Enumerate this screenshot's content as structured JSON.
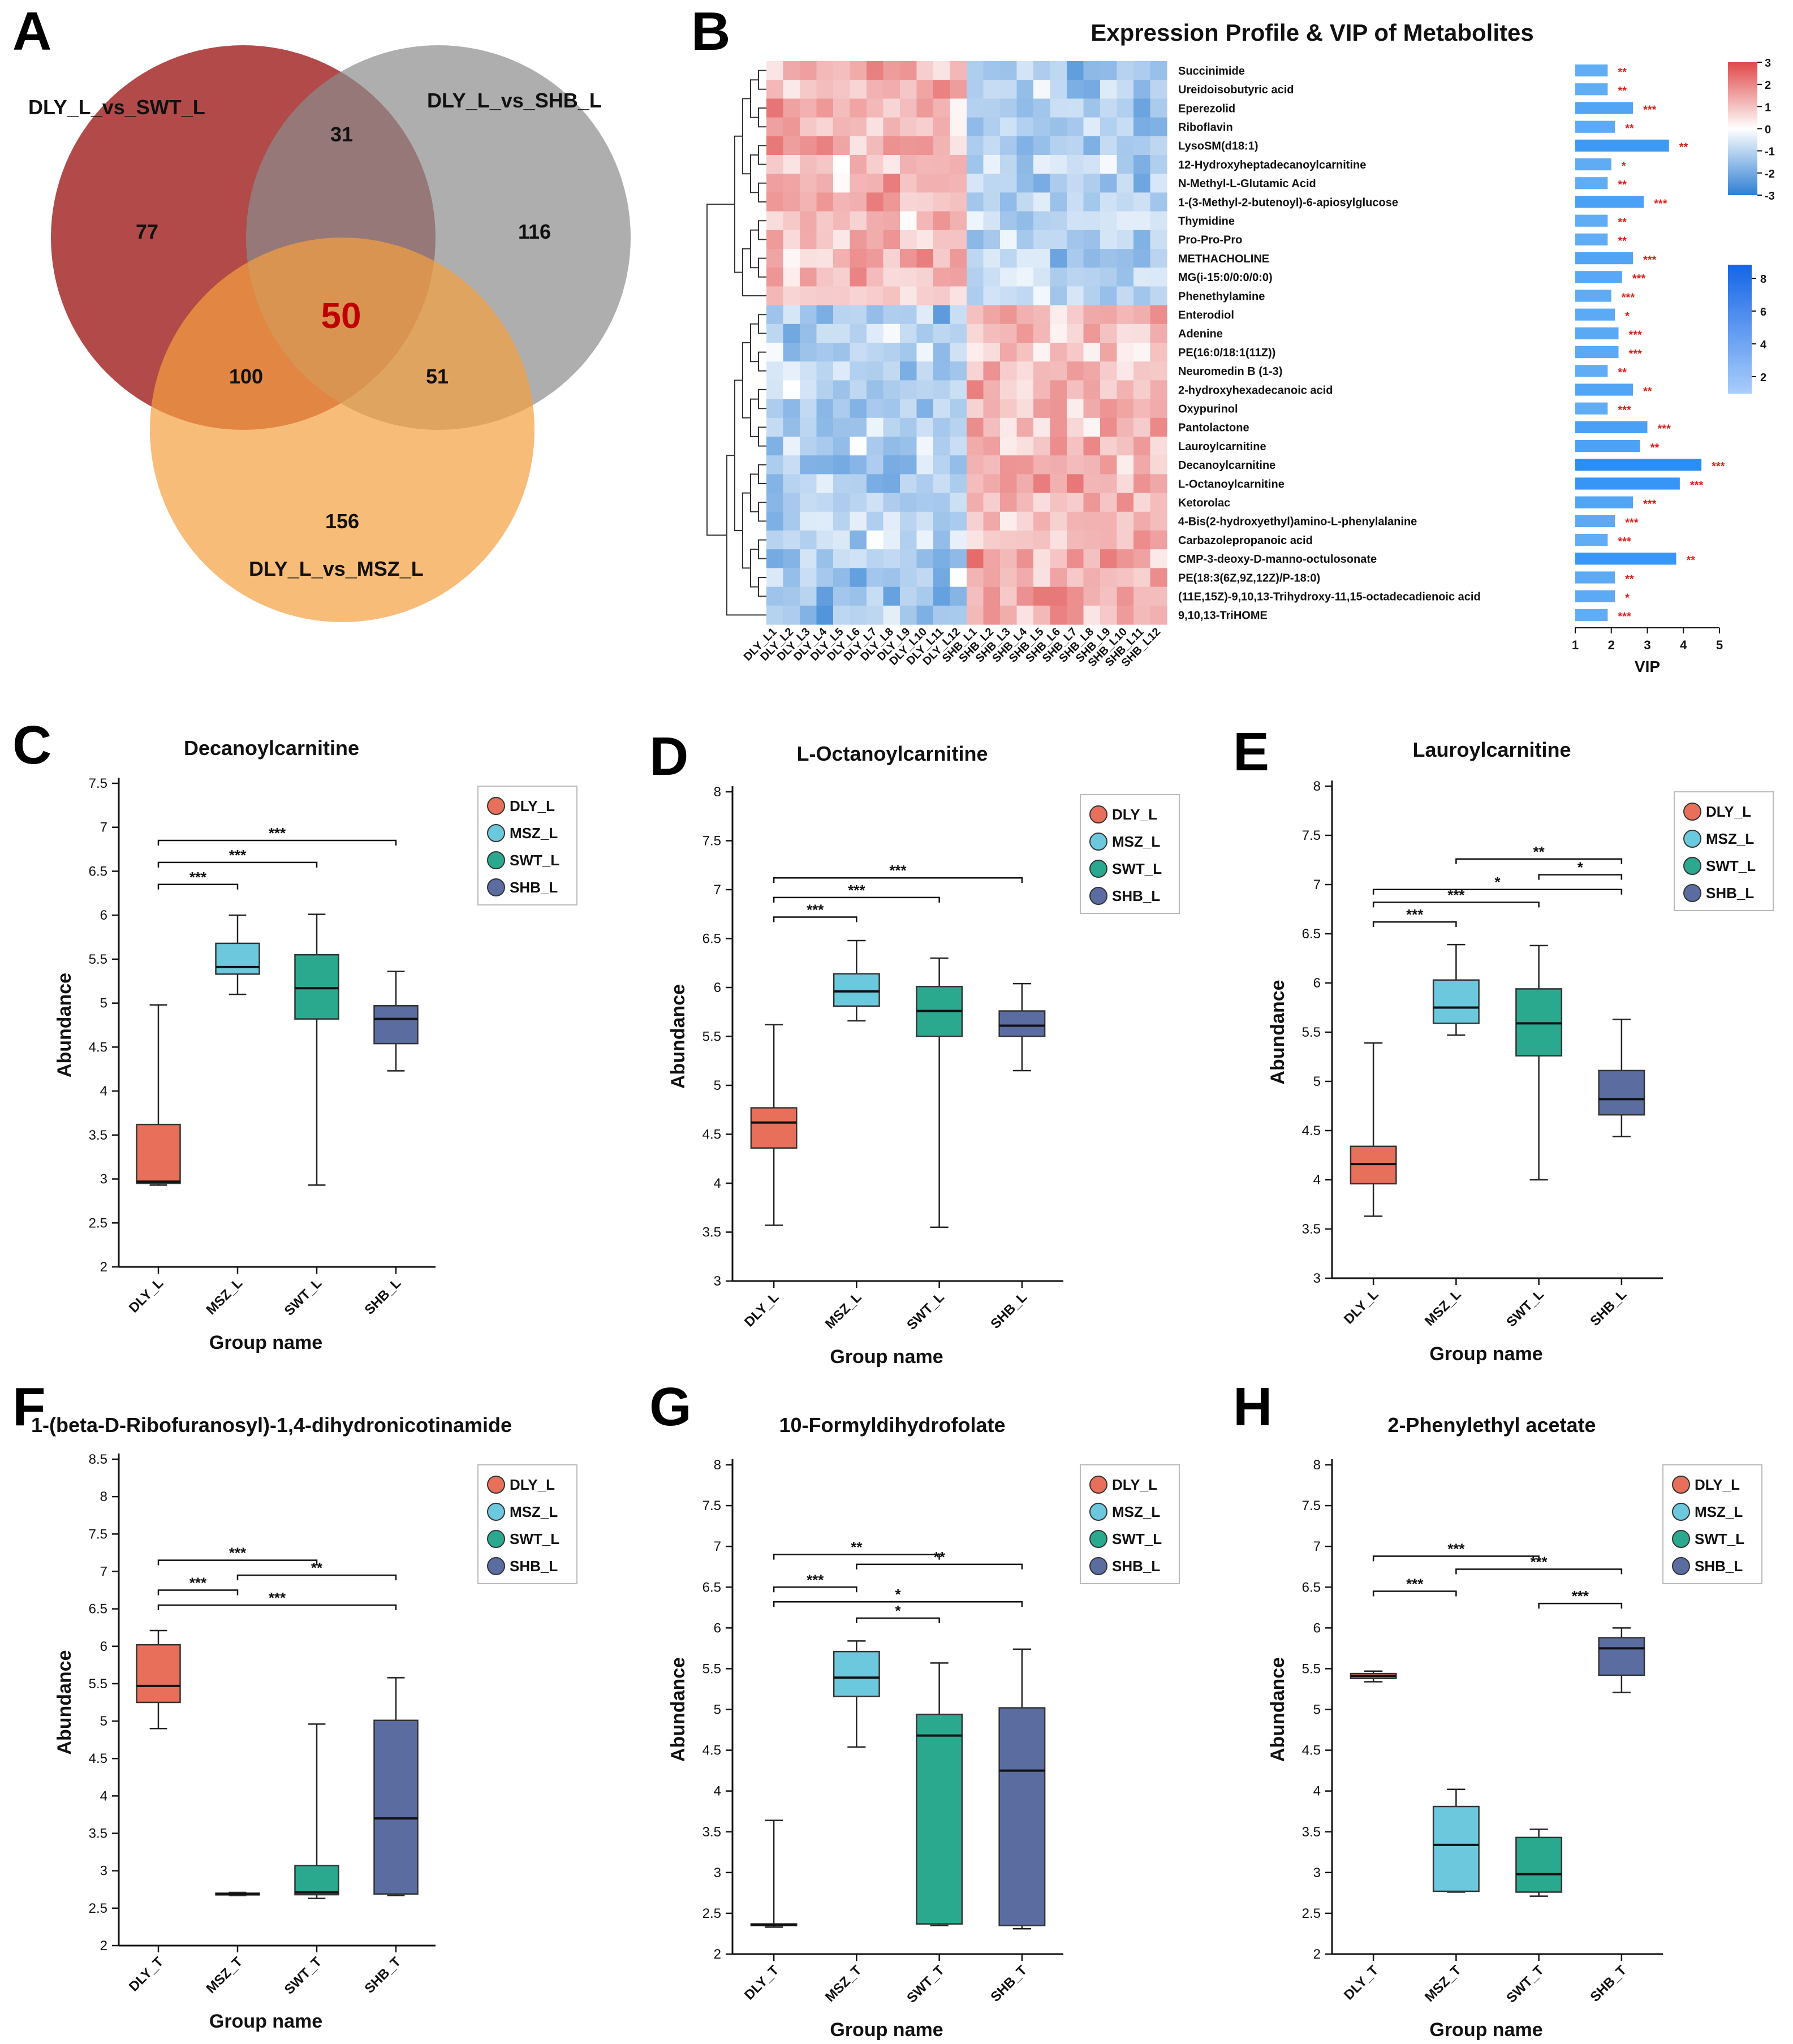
{
  "figure": {
    "panel_letters": [
      "A",
      "B",
      "C",
      "D",
      "E",
      "F",
      "G",
      "H"
    ]
  },
  "colors": {
    "dly": "#e8705b",
    "msz": "#6cc8dc",
    "swt": "#2aa98f",
    "shb": "#5a6ca0",
    "venn_swt": "#a52a2a",
    "venn_shb": "#8c8c8c",
    "venn_msz": "#f5a040",
    "heat_high": "#e04848",
    "heat_low": "#2f7fd3",
    "vip_bar": "#3c8ef0",
    "star": "#e0201a"
  },
  "venn": {
    "sets": [
      "DLY_L_vs_SWT_L",
      "DLY_L_vs_SHB_L",
      "DLY_L_vs_MSZ_L"
    ],
    "only_swt": "77",
    "swt_shb": "31",
    "only_shb": "116",
    "all_three": "50",
    "swt_msz": "100",
    "shb_msz": "51",
    "only_msz": "156"
  },
  "chart_data": [
    {
      "panel": "B",
      "type": "heatmap",
      "title": "Expression Profile & VIP of Metabolites",
      "columns": [
        "DLY_L1",
        "DLY_L2",
        "DLY_L3",
        "DLY_L4",
        "DLY_L5",
        "DLY_L6",
        "DLY_L7",
        "DLY_L8",
        "DLY_L9",
        "DLY_L10",
        "DLY_L11",
        "DLY_L12",
        "SHB_L1",
        "SHB_L2",
        "SHB_L3",
        "SHB_L4",
        "SHB_L5",
        "SHB_L6",
        "SHB_L7",
        "SHB_L8",
        "SHB_L9",
        "SHB_L10",
        "SHB_L11",
        "SHB_L12"
      ],
      "rows": [
        {
          "name": "Succinimide",
          "vip": 1.9,
          "sig": "**",
          "pattern": "up",
          "strength": 1.3
        },
        {
          "name": "Ureidoisobutyric acid",
          "vip": 1.9,
          "sig": "**",
          "pattern": "up",
          "strength": 1.2
        },
        {
          "name": "Eperezolid",
          "vip": 2.6,
          "sig": "***",
          "pattern": "up",
          "strength": 1.4
        },
        {
          "name": "Riboflavin",
          "vip": 2.1,
          "sig": "**",
          "pattern": "up",
          "strength": 1.1
        },
        {
          "name": "LysoSM(d18:1)",
          "vip": 3.6,
          "sig": "**",
          "pattern": "up",
          "strength": 1.5
        },
        {
          "name": "12-Hydroxyheptadecanoylcarnitine",
          "vip": 2.0,
          "sig": "*",
          "pattern": "up",
          "strength": 1.0
        },
        {
          "name": "N-Methyl-L-Glutamic Acid",
          "vip": 1.9,
          "sig": "**",
          "pattern": "up",
          "strength": 1.2
        },
        {
          "name": "1-(3-Methyl-2-butenoyl)-6-apiosylglucose",
          "vip": 2.9,
          "sig": "***",
          "pattern": "up",
          "strength": 1.3
        },
        {
          "name": "Thymidine",
          "vip": 1.9,
          "sig": "**",
          "pattern": "up",
          "strength": 1.2
        },
        {
          "name": "Pro-Pro-Pro",
          "vip": 1.9,
          "sig": "**",
          "pattern": "up",
          "strength": 1.1
        },
        {
          "name": "METHACHOLINE",
          "vip": 2.6,
          "sig": "***",
          "pattern": "up",
          "strength": 1.3
        },
        {
          "name": "MG(i-15:0/0:0/0:0)",
          "vip": 2.3,
          "sig": "***",
          "pattern": "up",
          "strength": 1.1
        },
        {
          "name": "Phenethylamine",
          "vip": 2.0,
          "sig": "***",
          "pattern": "up",
          "strength": 0.9
        },
        {
          "name": "Enterodiol",
          "vip": 2.1,
          "sig": "*",
          "pattern": "down",
          "strength": 1.5
        },
        {
          "name": "Adenine",
          "vip": 2.2,
          "sig": "***",
          "pattern": "down",
          "strength": 1.1
        },
        {
          "name": "PE(16:0/18:1(11Z))",
          "vip": 2.2,
          "sig": "***",
          "pattern": "down",
          "strength": 1.1
        },
        {
          "name": "Neuromedin B (1-3)",
          "vip": 1.9,
          "sig": "**",
          "pattern": "down",
          "strength": 1.0
        },
        {
          "name": "2-hydroxyhexadecanoic acid",
          "vip": 2.6,
          "sig": "**",
          "pattern": "down",
          "strength": 1.2
        },
        {
          "name": "Oxypurinol",
          "vip": 1.9,
          "sig": "***",
          "pattern": "down",
          "strength": 1.1
        },
        {
          "name": "Pantolactone",
          "vip": 3.0,
          "sig": "***",
          "pattern": "down",
          "strength": 1.2
        },
        {
          "name": "Lauroylcarnitine",
          "vip": 2.8,
          "sig": "**",
          "pattern": "down",
          "strength": 1.2
        },
        {
          "name": "Decanoylcarnitine",
          "vip": 4.5,
          "sig": "***",
          "pattern": "down",
          "strength": 1.3
        },
        {
          "name": "L-Octanoylcarnitine",
          "vip": 3.9,
          "sig": "***",
          "pattern": "down",
          "strength": 1.3
        },
        {
          "name": "Ketorolac",
          "vip": 2.6,
          "sig": "***",
          "pattern": "down",
          "strength": 1.2
        },
        {
          "name": "4-Bis(2-hydroxyethyl)amino-L-phenylalanine",
          "vip": 2.1,
          "sig": "***",
          "pattern": "down",
          "strength": 1.1
        },
        {
          "name": "Carbazolepropanoic acid",
          "vip": 1.9,
          "sig": "***",
          "pattern": "down",
          "strength": 1.1
        },
        {
          "name": "CMP-3-deoxy-D-manno-octulosonate",
          "vip": 3.8,
          "sig": "**",
          "pattern": "down",
          "strength": 1.4
        },
        {
          "name": "PE(18:3(6Z,9Z,12Z)/P-18:0)",
          "vip": 2.1,
          "sig": "**",
          "pattern": "down",
          "strength": 1.3
        },
        {
          "name": "(11E,15Z)-9,10,13-Trihydroxy-11,15-octadecadienoic acid",
          "vip": 2.1,
          "sig": "*",
          "pattern": "down",
          "strength": 1.6
        },
        {
          "name": "9,10,13-TriHOME",
          "vip": 1.9,
          "sig": "***",
          "pattern": "down",
          "strength": 1.6
        }
      ],
      "colorbar_ticks": [
        "3",
        "2",
        "1",
        "0",
        "-1",
        "-2",
        "-3"
      ],
      "vip_colorbar_ticks": [
        "8",
        "6",
        "4",
        "2"
      ],
      "vip_axis": {
        "label": "VIP",
        "ticks": [
          "1",
          "2",
          "3",
          "4",
          "5"
        ],
        "range": [
          1,
          5
        ]
      }
    },
    {
      "panel": "C",
      "type": "box",
      "title": "Decanoylcarnitine",
      "ylabel": "Abundance",
      "xlabel": "Group name",
      "ylim": [
        2,
        7.5
      ],
      "yticks": [
        "2",
        "2.5",
        "3",
        "3.5",
        "4",
        "4.5",
        "5",
        "5.5",
        "6",
        "6.5",
        "7",
        "7.5"
      ],
      "groups": [
        "DLY_L",
        "MSZ_L",
        "SWT_L",
        "SHB_L"
      ],
      "boxes": [
        {
          "min": 2.93,
          "q1": 2.95,
          "median": 2.97,
          "q3": 3.62,
          "max": 4.98
        },
        {
          "min": 5.1,
          "q1": 5.33,
          "median": 5.41,
          "q3": 5.68,
          "max": 6.0
        },
        {
          "min": 2.93,
          "q1": 4.82,
          "median": 5.17,
          "q3": 5.55,
          "max": 6.01
        },
        {
          "min": 4.23,
          "q1": 4.54,
          "median": 4.82,
          "q3": 4.97,
          "max": 5.36
        }
      ],
      "sigs": [
        {
          "from": 0,
          "to": 1,
          "level": 6.35,
          "label": "***"
        },
        {
          "from": 0,
          "to": 2,
          "level": 6.6,
          "label": "***"
        },
        {
          "from": 0,
          "to": 3,
          "level": 6.85,
          "label": "***"
        }
      ]
    },
    {
      "panel": "D",
      "type": "box",
      "title": "L-Octanoylcarnitine",
      "ylabel": "Abundance",
      "xlabel": "Group name",
      "ylim": [
        3,
        8
      ],
      "yticks": [
        "3",
        "3.5",
        "4",
        "4.5",
        "5",
        "5.5",
        "6",
        "6.5",
        "7",
        "7.5",
        "8"
      ],
      "groups": [
        "DLY_L",
        "MSZ_L",
        "SWT_L",
        "SHB_L"
      ],
      "boxes": [
        {
          "min": 3.57,
          "q1": 4.36,
          "median": 4.62,
          "q3": 4.77,
          "max": 5.62
        },
        {
          "min": 5.66,
          "q1": 5.81,
          "median": 5.96,
          "q3": 6.14,
          "max": 6.48
        },
        {
          "min": 3.55,
          "q1": 5.5,
          "median": 5.76,
          "q3": 6.01,
          "max": 6.3
        },
        {
          "min": 5.15,
          "q1": 5.5,
          "median": 5.61,
          "q3": 5.76,
          "max": 6.04
        }
      ],
      "sigs": [
        {
          "from": 0,
          "to": 1,
          "level": 6.72,
          "label": "***"
        },
        {
          "from": 0,
          "to": 2,
          "level": 6.92,
          "label": "***"
        },
        {
          "from": 0,
          "to": 3,
          "level": 7.12,
          "label": "***"
        }
      ]
    },
    {
      "panel": "E",
      "type": "box",
      "title": "Lauroylcarnitine",
      "ylabel": "Abundance",
      "xlabel": "Group name",
      "ylim": [
        3,
        8
      ],
      "yticks": [
        "3",
        "3.5",
        "4",
        "4.5",
        "5",
        "5.5",
        "6",
        "6.5",
        "7",
        "7.5",
        "8"
      ],
      "groups": [
        "DLY_L",
        "MSZ_L",
        "SWT_L",
        "SHB_L"
      ],
      "boxes": [
        {
          "min": 3.63,
          "q1": 3.96,
          "median": 4.16,
          "q3": 4.34,
          "max": 5.39
        },
        {
          "min": 5.47,
          "q1": 5.59,
          "median": 5.75,
          "q3": 6.03,
          "max": 6.39
        },
        {
          "min": 4.0,
          "q1": 5.26,
          "median": 5.59,
          "q3": 5.94,
          "max": 6.38
        },
        {
          "min": 4.44,
          "q1": 4.66,
          "median": 4.82,
          "q3": 5.11,
          "max": 5.63
        }
      ],
      "sigs": [
        {
          "from": 0,
          "to": 1,
          "level": 6.62,
          "label": "***"
        },
        {
          "from": 0,
          "to": 2,
          "level": 6.82,
          "label": "***"
        },
        {
          "from": 0,
          "to": 3,
          "level": 6.95,
          "label": "*"
        },
        {
          "from": 2,
          "to": 3,
          "level": 7.1,
          "label": "*"
        },
        {
          "from": 1,
          "to": 3,
          "level": 7.26,
          "label": "**"
        }
      ]
    },
    {
      "panel": "F",
      "type": "box",
      "title": "1-(beta-D-Ribofuranosyl)-1,4-dihydronicotinamide",
      "ylabel": "Abundance",
      "xlabel": "Group name",
      "ylim": [
        2,
        8.5
      ],
      "yticks": [
        "2",
        "2.5",
        "3",
        "3.5",
        "4",
        "4.5",
        "5",
        "5.5",
        "6",
        "6.5",
        "7",
        "7.5",
        "8",
        "8.5"
      ],
      "groups": [
        "DLY_T",
        "MSZ_T",
        "SWT_T",
        "SHB_T"
      ],
      "boxes": [
        {
          "min": 4.9,
          "q1": 5.25,
          "median": 5.47,
          "q3": 6.02,
          "max": 6.21
        },
        {
          "min": 2.67,
          "q1": 2.68,
          "median": 2.69,
          "q3": 2.7,
          "max": 2.71
        },
        {
          "min": 2.63,
          "q1": 2.68,
          "median": 2.71,
          "q3": 3.07,
          "max": 4.96
        },
        {
          "min": 2.67,
          "q1": 2.69,
          "median": 3.7,
          "q3": 5.01,
          "max": 5.58
        }
      ],
      "sigs": [
        {
          "from": 0,
          "to": 1,
          "level": 6.75,
          "label": "***"
        },
        {
          "from": 1,
          "to": 3,
          "level": 6.95,
          "label": "**"
        },
        {
          "from": 0,
          "to": 2,
          "level": 7.15,
          "label": "***"
        },
        {
          "from": 0,
          "to": 3,
          "level": 6.55,
          "label": "***"
        }
      ]
    },
    {
      "panel": "G",
      "type": "box",
      "title": "10-Formyldihydrofolate",
      "ylabel": "Abundance",
      "xlabel": "Group name",
      "ylim": [
        2,
        8
      ],
      "yticks": [
        "2",
        "2.5",
        "3",
        "3.5",
        "4",
        "4.5",
        "5",
        "5.5",
        "6",
        "6.5",
        "7",
        "7.5",
        "8"
      ],
      "groups": [
        "DLY_T",
        "MSZ_T",
        "SWT_T",
        "SHB_T"
      ],
      "boxes": [
        {
          "min": 2.33,
          "q1": 2.35,
          "median": 2.36,
          "q3": 2.37,
          "max": 3.64
        },
        {
          "min": 4.54,
          "q1": 5.16,
          "median": 5.39,
          "q3": 5.71,
          "max": 5.84
        },
        {
          "min": 2.35,
          "q1": 2.37,
          "median": 4.68,
          "q3": 4.94,
          "max": 5.57
        },
        {
          "min": 2.31,
          "q1": 2.35,
          "median": 4.25,
          "q3": 5.02,
          "max": 5.74
        }
      ],
      "sigs": [
        {
          "from": 0,
          "to": 2,
          "level": 6.9,
          "label": "**"
        },
        {
          "from": 1,
          "to": 3,
          "level": 6.78,
          "label": "**"
        },
        {
          "from": 0,
          "to": 1,
          "level": 6.5,
          "label": "***"
        },
        {
          "from": 0,
          "to": 3,
          "level": 6.32,
          "label": "*"
        },
        {
          "from": 1,
          "to": 2,
          "level": 6.12,
          "label": "*"
        }
      ]
    },
    {
      "panel": "H",
      "type": "box",
      "title": "2-Phenylethyl acetate",
      "ylabel": "Abundance",
      "xlabel": "Group name",
      "ylim": [
        2,
        8
      ],
      "yticks": [
        "2",
        "2.5",
        "3",
        "3.5",
        "4",
        "4.5",
        "5",
        "5.5",
        "6",
        "6.5",
        "7",
        "7.5",
        "8"
      ],
      "groups": [
        "DLY_T",
        "MSZ_T",
        "SWT_T",
        "SHB_T"
      ],
      "boxes": [
        {
          "min": 5.34,
          "q1": 5.38,
          "median": 5.41,
          "q3": 5.44,
          "max": 5.47
        },
        {
          "min": 2.76,
          "q1": 2.77,
          "median": 3.34,
          "q3": 3.81,
          "max": 4.02
        },
        {
          "min": 2.71,
          "q1": 2.76,
          "median": 2.98,
          "q3": 3.43,
          "max": 3.53
        },
        {
          "min": 5.21,
          "q1": 5.42,
          "median": 5.75,
          "q3": 5.88,
          "max": 6.0
        }
      ],
      "sigs": [
        {
          "from": 0,
          "to": 1,
          "level": 6.45,
          "label": "***"
        },
        {
          "from": 0,
          "to": 2,
          "level": 6.88,
          "label": "***"
        },
        {
          "from": 1,
          "to": 3,
          "level": 6.72,
          "label": "***"
        },
        {
          "from": 2,
          "to": 3,
          "level": 6.3,
          "label": "***"
        }
      ]
    }
  ]
}
